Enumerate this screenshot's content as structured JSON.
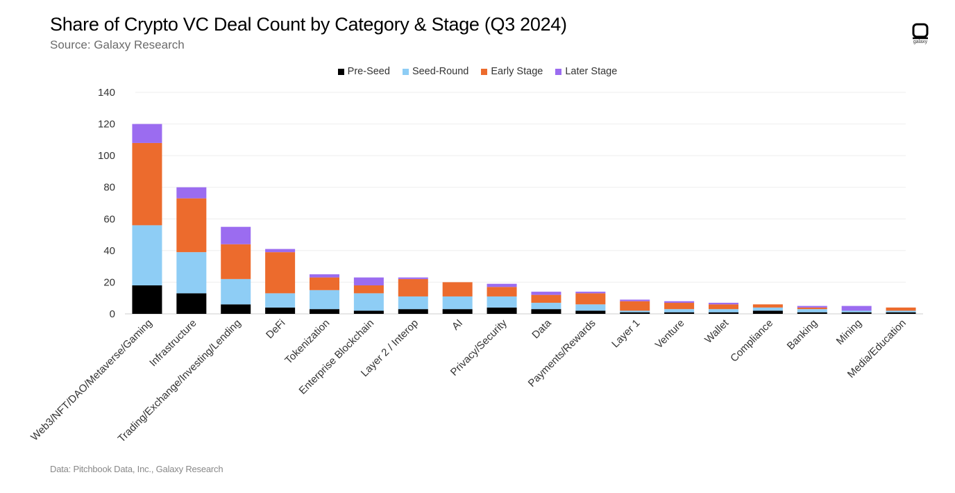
{
  "header": {
    "title": "Share of Crypto VC Deal Count by Category & Stage (Q3 2024)",
    "subtitle": "Source: Galaxy Research"
  },
  "footer": {
    "note": "Data: Pitchbook Data, Inc., Galaxy Research"
  },
  "logo": {
    "icon": "galaxy-logo-icon",
    "text": "galaxy"
  },
  "chart_data": {
    "type": "bar",
    "stacked": true,
    "title": "Share of Crypto VC Deal Count by Category & Stage (Q3 2024)",
    "xlabel": "",
    "ylabel": "",
    "ylim": [
      0,
      140
    ],
    "yticks": [
      0,
      20,
      40,
      60,
      80,
      100,
      120,
      140
    ],
    "grid": true,
    "legend_position": "top-center",
    "categories": [
      "Web3/NFT/DAO/Metaverse/Gaming",
      "Infrastructure",
      "Trading/Exchange/Investing/Lending",
      "DeFi",
      "Tokenization",
      "Enterprise Blockchain",
      "Layer 2 / Interop",
      "AI",
      "Privacy/Security",
      "Data",
      "Payments/Rewards",
      "Layer 1",
      "Venture",
      "Wallet",
      "Compliance",
      "Banking",
      "Mining",
      "Media/Education"
    ],
    "series": [
      {
        "name": "Pre-Seed",
        "color": "#000000",
        "values": [
          18,
          13,
          6,
          4,
          3,
          2,
          3,
          3,
          4,
          3,
          2,
          1,
          1,
          1,
          2,
          1,
          1,
          1
        ]
      },
      {
        "name": "Seed-Round",
        "color": "#8ecdf5",
        "values": [
          38,
          26,
          16,
          9,
          12,
          11,
          8,
          8,
          7,
          4,
          4,
          1,
          2,
          2,
          2,
          2,
          1,
          1
        ]
      },
      {
        "name": "Early Stage",
        "color": "#ec6b2d",
        "values": [
          52,
          34,
          22,
          26,
          8,
          5,
          11,
          9,
          6,
          5,
          7,
          6,
          4,
          3,
          2,
          1,
          0,
          2
        ]
      },
      {
        "name": "Later Stage",
        "color": "#9b6cf0",
        "values": [
          12,
          7,
          11,
          2,
          2,
          5,
          1,
          0,
          2,
          2,
          1,
          1,
          1,
          1,
          0,
          1,
          3,
          0
        ]
      }
    ]
  }
}
